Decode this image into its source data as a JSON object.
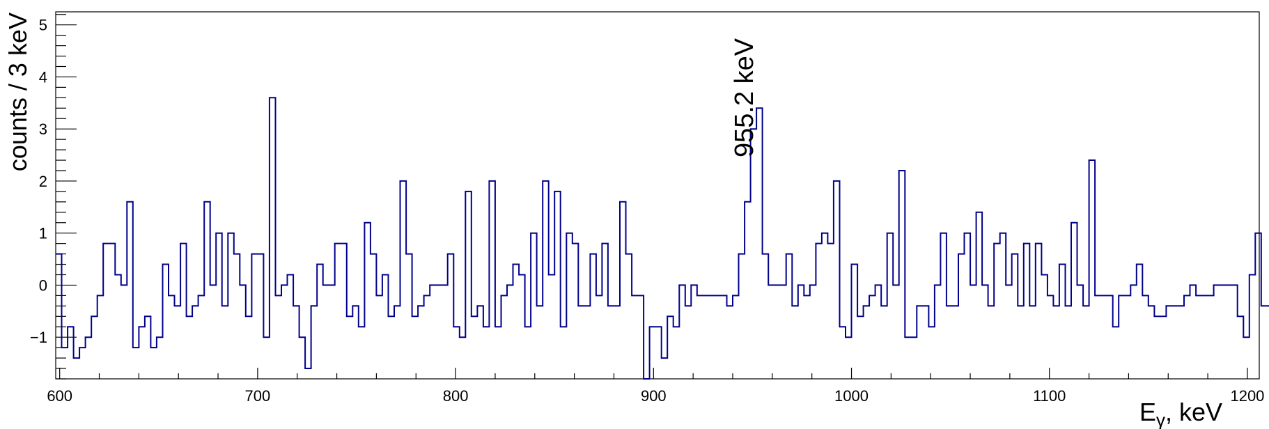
{
  "chart_data": {
    "type": "histogram-step",
    "title": "",
    "xlabel": "E",
    "xlabel_sub": "γ",
    "xlabel_suffix": ", keV",
    "ylabel": "counts / 3 keV",
    "xlim": [
      598,
      1206
    ],
    "ylim": [
      -1.8,
      5.25
    ],
    "bin_width": 3,
    "x_ticks": [
      600,
      700,
      800,
      900,
      1000,
      1100,
      1200
    ],
    "y_ticks": [
      -1,
      0,
      1,
      2,
      3,
      4,
      5
    ],
    "y_tick_labels": [
      "−1",
      "0",
      "1",
      "2",
      "3",
      "4",
      "5"
    ],
    "annotation": {
      "text": "955.2 keV",
      "x": 955.2
    },
    "line_color": "#00008b",
    "bin_start": 598,
    "values": [
      0.6,
      -1.2,
      -0.8,
      -1.4,
      -1.2,
      -1.0,
      -0.6,
      -0.2,
      0.8,
      0.8,
      0.2,
      0.0,
      1.6,
      -1.2,
      -0.8,
      -0.6,
      -1.2,
      -1.0,
      0.4,
      -0.2,
      -0.4,
      0.8,
      -0.6,
      -0.4,
      -0.2,
      1.6,
      0.0,
      1.0,
      -0.4,
      1.0,
      0.6,
      0.0,
      -0.6,
      0.6,
      0.6,
      -1.0,
      3.6,
      -0.2,
      0.0,
      0.2,
      -0.4,
      -1.0,
      -1.6,
      -0.4,
      0.4,
      0.0,
      0.0,
      0.8,
      0.8,
      -0.6,
      -0.4,
      -0.8,
      1.2,
      0.6,
      -0.2,
      0.2,
      -0.6,
      -0.4,
      2.0,
      0.6,
      -0.6,
      -0.4,
      -0.2,
      0.0,
      0.0,
      0.0,
      0.6,
      -0.8,
      -1.0,
      1.8,
      -0.6,
      -0.4,
      -0.8,
      2.0,
      -0.8,
      -0.2,
      0.0,
      0.4,
      0.2,
      -0.8,
      1.0,
      -0.4,
      2.0,
      0.2,
      1.8,
      -0.8,
      1.0,
      0.8,
      -0.4,
      -0.4,
      0.6,
      -0.2,
      0.8,
      -0.4,
      -0.4,
      1.6,
      0.6,
      -0.2,
      -0.2,
      -1.8,
      -0.8,
      -0.8,
      -1.4,
      -0.6,
      -0.8,
      0.0,
      -0.4,
      0.0,
      -0.2,
      -0.2,
      -0.2,
      -0.2,
      -0.2,
      -0.4,
      -0.2,
      0.6,
      1.6,
      3.0,
      3.4,
      0.6,
      0.0,
      0.0,
      0.0,
      0.6,
      -0.4,
      0.0,
      -0.2,
      0.0,
      0.8,
      1.0,
      0.8,
      2.0,
      -0.8,
      -1.0,
      0.4,
      -0.6,
      -0.4,
      -0.2,
      0.0,
      -0.4,
      1.0,
      0.0,
      2.2,
      -1.0,
      -1.0,
      -0.4,
      -0.4,
      -0.8,
      0.0,
      1.0,
      -0.4,
      -0.4,
      0.6,
      1.0,
      0.0,
      1.4,
      0.0,
      -0.4,
      0.8,
      1.0,
      0.0,
      0.6,
      -0.4,
      0.8,
      -0.4,
      0.8,
      0.2,
      -0.2,
      -0.4,
      0.4,
      -0.4,
      1.2,
      0.0,
      -0.4,
      2.4,
      -0.2,
      -0.2,
      -0.2,
      -0.8,
      -0.2,
      -0.2,
      0.0,
      0.4,
      -0.2,
      -0.4,
      -0.6,
      -0.6,
      -0.4,
      -0.4,
      -0.4,
      -0.2,
      0.0,
      -0.2,
      -0.2,
      -0.2,
      0.0,
      0.0,
      0.0,
      0.0,
      -0.6,
      -1.0,
      0.2,
      1.0,
      -0.4,
      -0.4,
      -0.2
    ]
  }
}
